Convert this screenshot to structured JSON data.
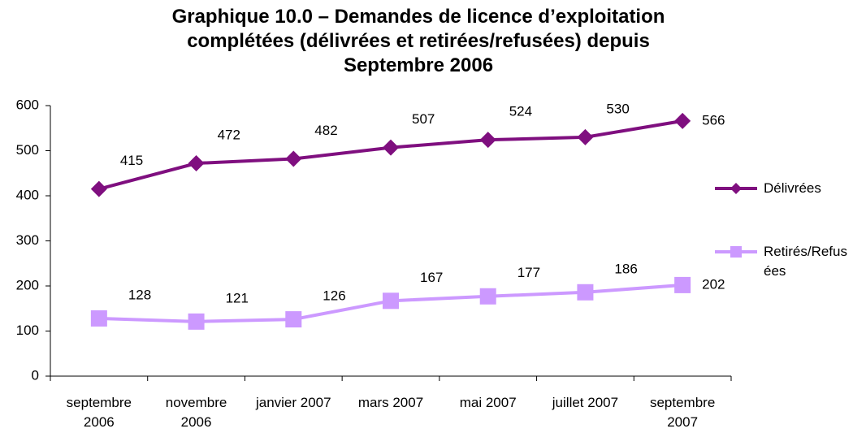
{
  "chart_data": {
    "type": "line",
    "title": "Graphique 10.0 – Demandes de licence d’exploitation complétées (délivrées et retirées/refusées) depuis Septembre 2006",
    "categories": [
      "septembre 2006",
      "novembre 2006",
      "janvier 2007",
      "mars 2007",
      "mai 2007",
      "juillet 2007",
      "septembre 2007"
    ],
    "series": [
      {
        "name": "Délivrées",
        "color": "#7f0f7f",
        "marker": "diamond",
        "values": [
          415,
          472,
          482,
          507,
          524,
          530,
          566
        ]
      },
      {
        "name": "Retirés/Refusées",
        "color": "#cc99ff",
        "marker": "square",
        "values": [
          128,
          121,
          126,
          167,
          177,
          186,
          202
        ]
      }
    ],
    "ylim": [
      0,
      600
    ],
    "yticks": [
      0,
      100,
      200,
      300,
      400,
      500,
      600
    ],
    "grid": false,
    "legend": "right"
  }
}
